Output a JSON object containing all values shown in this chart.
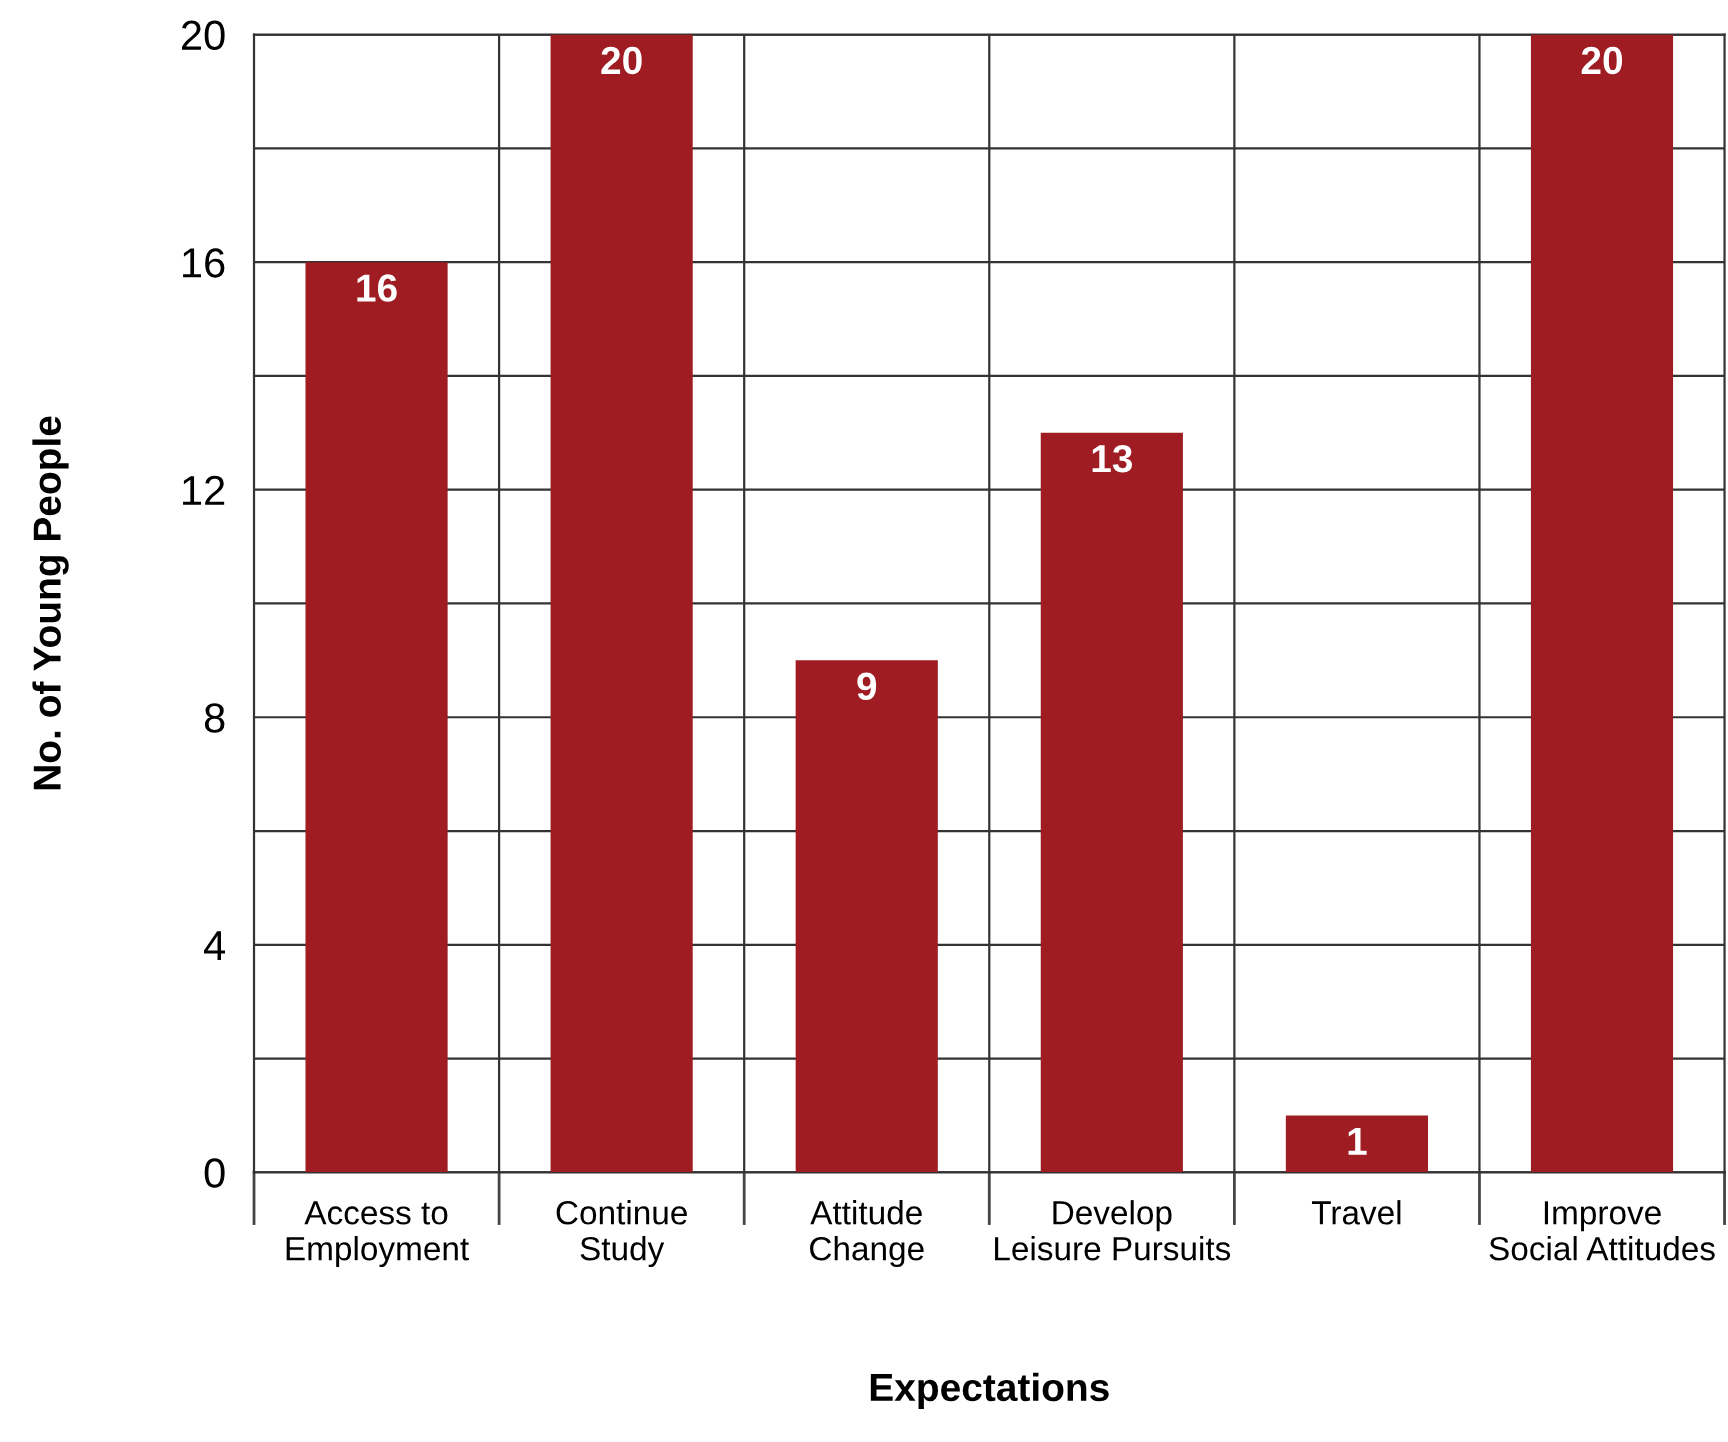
{
  "chart_data": {
    "type": "bar",
    "xlabel": "Expectations",
    "ylabel": "No. of Young People",
    "categories": [
      "Access to\nEmployment",
      "Continue\nStudy",
      "Attitude\nChange",
      "Develop\nLeisure Pursuits",
      "Travel",
      "Improve\nSocial Attitudes"
    ],
    "values": [
      16,
      20,
      9,
      13,
      1,
      20
    ],
    "color": "#9e1c22",
    "ylim": [
      0,
      20
    ],
    "yticks": [
      0,
      {
        "value": 2,
        "label": null
      },
      4,
      {
        "value": 6,
        "label": null
      },
      8,
      {
        "value": 10,
        "label": null
      },
      12,
      {
        "value": 14,
        "label": null
      },
      16,
      {
        "value": 18,
        "label": null
      },
      20
    ],
    "grid": true,
    "data_labels": true
  }
}
